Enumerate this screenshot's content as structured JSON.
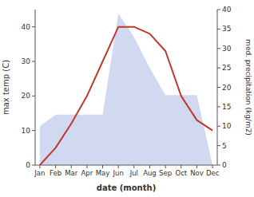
{
  "chart_data": {
    "type": "line",
    "categories": [
      "Jan",
      "Feb",
      "Mar",
      "Apr",
      "May",
      "Jun",
      "Jul",
      "Aug",
      "Sep",
      "Oct",
      "Nov",
      "Dec"
    ],
    "xlabel": "date (month)",
    "ylabel": "max temp (C)",
    "y2label": "med. precipitation (kg/m2)",
    "series": [
      {
        "type": "line",
        "color": "#c0392b",
        "values": [
          0,
          5,
          12,
          20,
          30,
          40,
          40,
          38,
          33,
          20,
          13,
          10
        ]
      },
      {
        "type": "area",
        "axis": "y2",
        "color": "#b8c4e8",
        "values": [
          10,
          13,
          13,
          13,
          13,
          39,
          33,
          25,
          18,
          18,
          18,
          0
        ]
      }
    ],
    "ylim": [
      0,
      45
    ],
    "yticks": [
      0,
      10,
      20,
      30,
      40
    ],
    "y2lim": [
      0,
      40
    ],
    "y2ticks": [
      0,
      5,
      10,
      15,
      20,
      25,
      30,
      35,
      40
    ]
  }
}
